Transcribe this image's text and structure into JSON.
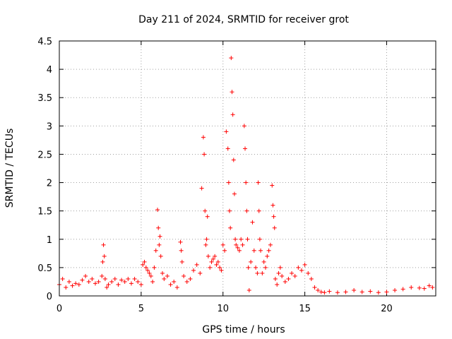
{
  "chart_data": {
    "type": "scatter",
    "title": "Day 211 of 2024, SRMTID for receiver grot",
    "xlabel": "GPS time / hours",
    "ylabel": "SRMTID / TECUs",
    "xlim": [
      0,
      23
    ],
    "ylim": [
      0,
      4.5
    ],
    "xticks": [
      0,
      5,
      10,
      15,
      20
    ],
    "xtick_labels": [
      "0",
      "5",
      "10",
      "15",
      "20"
    ],
    "yticks": [
      0,
      0.5,
      1,
      1.5,
      2,
      2.5,
      3,
      3.5,
      4,
      4.5
    ],
    "ytick_labels": [
      "0",
      "0.5",
      "1",
      "1.5",
      "2",
      "2.5",
      "3",
      "3.5",
      "4",
      "4.5"
    ],
    "grid": true,
    "marker": "+",
    "color": "#ff0000",
    "series": [
      {
        "name": "SRMTID",
        "x": [
          0.0,
          0.2,
          0.4,
          0.6,
          0.8,
          1.0,
          1.2,
          1.4,
          1.6,
          1.8,
          2.0,
          2.2,
          2.4,
          2.6,
          2.65,
          2.7,
          2.75,
          2.8,
          2.9,
          3.0,
          3.2,
          3.4,
          3.6,
          3.8,
          4.0,
          4.2,
          4.4,
          4.6,
          4.8,
          5.0,
          5.1,
          5.2,
          5.3,
          5.4,
          5.5,
          5.6,
          5.7,
          5.8,
          5.9,
          6.0,
          6.05,
          6.1,
          6.15,
          6.2,
          6.3,
          6.4,
          6.6,
          6.8,
          7.0,
          7.2,
          7.4,
          7.45,
          7.5,
          7.6,
          7.8,
          8.0,
          8.2,
          8.4,
          8.6,
          8.7,
          8.8,
          8.85,
          8.9,
          8.95,
          9.0,
          9.05,
          9.1,
          9.2,
          9.3,
          9.4,
          9.5,
          9.6,
          9.7,
          9.8,
          9.9,
          10.0,
          10.1,
          10.2,
          10.3,
          10.35,
          10.4,
          10.45,
          10.5,
          10.55,
          10.6,
          10.65,
          10.7,
          10.75,
          10.8,
          10.9,
          11.0,
          11.1,
          11.2,
          11.3,
          11.35,
          11.4,
          11.45,
          11.5,
          11.55,
          11.6,
          11.7,
          11.8,
          11.9,
          12.0,
          12.1,
          12.15,
          12.2,
          12.25,
          12.3,
          12.4,
          12.5,
          12.6,
          12.7,
          12.8,
          12.9,
          13.0,
          13.05,
          13.1,
          13.15,
          13.2,
          13.3,
          13.4,
          13.5,
          13.6,
          13.8,
          14.0,
          14.2,
          14.4,
          14.6,
          14.8,
          15.0,
          15.2,
          15.4,
          15.6,
          15.8,
          16.0,
          16.2,
          16.5,
          17.0,
          17.5,
          18.0,
          18.5,
          19.0,
          19.5,
          20.0,
          20.5,
          21.0,
          21.5,
          22.0,
          22.3,
          22.6,
          22.8
        ],
        "y": [
          0.2,
          0.3,
          0.15,
          0.25,
          0.18,
          0.22,
          0.2,
          0.28,
          0.35,
          0.25,
          0.3,
          0.22,
          0.25,
          0.35,
          0.6,
          0.9,
          0.7,
          0.3,
          0.15,
          0.2,
          0.25,
          0.3,
          0.2,
          0.28,
          0.25,
          0.3,
          0.22,
          0.3,
          0.25,
          0.2,
          0.55,
          0.6,
          0.5,
          0.45,
          0.4,
          0.35,
          0.25,
          0.5,
          0.8,
          1.52,
          1.2,
          0.9,
          1.05,
          0.7,
          0.4,
          0.3,
          0.35,
          0.2,
          0.25,
          0.15,
          0.95,
          0.8,
          0.6,
          0.35,
          0.25,
          0.3,
          0.45,
          0.55,
          0.4,
          1.9,
          2.8,
          2.5,
          1.5,
          0.9,
          1.0,
          1.4,
          0.7,
          0.5,
          0.6,
          0.65,
          0.7,
          0.55,
          0.6,
          0.5,
          0.45,
          0.9,
          0.8,
          2.9,
          2.6,
          2.0,
          1.5,
          1.2,
          4.2,
          3.6,
          3.2,
          2.4,
          1.8,
          1.0,
          0.9,
          0.85,
          0.8,
          1.0,
          0.9,
          3.0,
          2.6,
          2.0,
          1.5,
          1.0,
          0.5,
          0.1,
          0.6,
          1.3,
          0.8,
          0.5,
          0.4,
          2.0,
          1.5,
          1.0,
          0.8,
          0.4,
          0.6,
          0.5,
          0.7,
          0.8,
          0.9,
          1.95,
          1.6,
          1.4,
          1.2,
          0.3,
          0.2,
          0.4,
          0.5,
          0.35,
          0.25,
          0.3,
          0.4,
          0.35,
          0.5,
          0.45,
          0.55,
          0.4,
          0.3,
          0.15,
          0.1,
          0.07,
          0.06,
          0.08,
          0.06,
          0.07,
          0.1,
          0.07,
          0.08,
          0.06,
          0.07,
          0.1,
          0.12,
          0.15,
          0.14,
          0.13,
          0.18,
          0.15
        ]
      }
    ]
  }
}
